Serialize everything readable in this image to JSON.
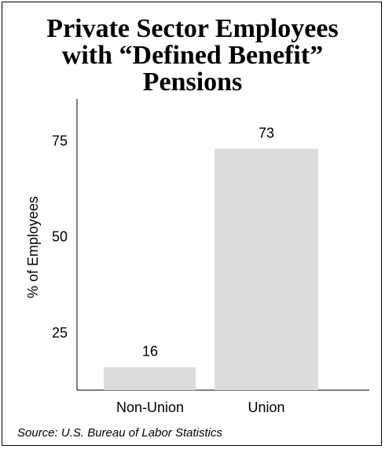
{
  "title_lines": [
    "Private Sector Employees",
    "with “Defined Benefit”",
    "Pensions"
  ],
  "source": "Source: U.S. Bureau of Labor Statistics",
  "colors": {
    "bar": "#dcdcdc",
    "axis": "#000000"
  },
  "chart_data": {
    "type": "bar",
    "title": "Private Sector Employees with “Defined Benefit” Pensions",
    "xlabel": "",
    "ylabel": "% of Employees",
    "categories": [
      "Non-Union",
      "Union"
    ],
    "values": [
      16,
      73
    ],
    "value_labels": [
      "16",
      "73"
    ],
    "y_ticks": [
      25,
      50,
      75
    ],
    "ylim": [
      10,
      86
    ],
    "grid": false,
    "legend": "none"
  }
}
